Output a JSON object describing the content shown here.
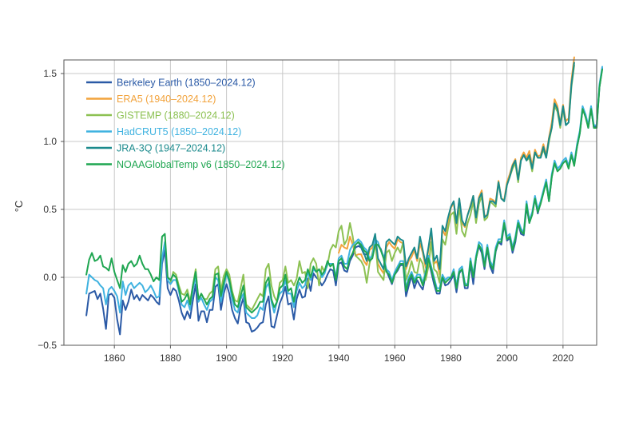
{
  "chart_data": {
    "type": "line",
    "title": "",
    "xlabel": "",
    "ylabel": "°C",
    "xlim": [
      1842,
      2032
    ],
    "ylim": [
      -0.5,
      1.6
    ],
    "xticks": [
      1860,
      1880,
      1900,
      1920,
      1940,
      1960,
      1980,
      2000,
      2020
    ],
    "yticks": [
      -0.5,
      0.0,
      0.5,
      1.0,
      1.5
    ],
    "ytick_labels": [
      "−0.5",
      "0.0",
      "0.5",
      "1.0",
      "1.5"
    ],
    "grid": true,
    "legend_position": "top-left",
    "series": [
      {
        "name": "Berkeley Earth (1850–2024.12)",
        "color": "#2b5aa6",
        "x_start": 1850,
        "values": [
          -0.28,
          -0.12,
          -0.11,
          -0.1,
          -0.16,
          -0.12,
          -0.23,
          -0.38,
          -0.13,
          -0.12,
          -0.15,
          -0.31,
          -0.42,
          -0.17,
          -0.24,
          -0.18,
          -0.09,
          -0.16,
          -0.13,
          -0.17,
          -0.13,
          -0.15,
          -0.17,
          -0.13,
          -0.15,
          -0.18,
          -0.2,
          0.1,
          0.2,
          -0.08,
          -0.13,
          -0.08,
          -0.1,
          -0.17,
          -0.26,
          -0.31,
          -0.25,
          -0.3,
          -0.17,
          -0.05,
          -0.32,
          -0.25,
          -0.25,
          -0.33,
          -0.24,
          -0.24,
          -0.07,
          -0.05,
          -0.24,
          -0.12,
          -0.05,
          -0.12,
          -0.24,
          -0.3,
          -0.34,
          -0.22,
          -0.15,
          -0.33,
          -0.34,
          -0.4,
          -0.39,
          -0.37,
          -0.34,
          -0.33,
          -0.2,
          -0.14,
          -0.36,
          -0.37,
          -0.28,
          -0.19,
          -0.14,
          -0.07,
          -0.2,
          -0.19,
          -0.31,
          -0.16,
          -0.09,
          -0.15,
          -0.14,
          -0.01,
          -0.1,
          0.03,
          0.0,
          -0.02,
          -0.06,
          -0.03,
          0.02,
          0.06,
          0.05,
          -0.06,
          0.1,
          0.11,
          0.05,
          0.04,
          0.12,
          0.16,
          0.22,
          0.23,
          0.22,
          0.17,
          0.17,
          0.12,
          0.15,
          0.24,
          0.24,
          0.21,
          0.15,
          0.05,
          0.0,
          -0.05,
          0.02,
          0.05,
          0.09,
          0.09,
          -0.14,
          -0.06,
          0.01,
          -0.08,
          -0.02,
          -0.06,
          -0.09,
          0.02,
          0.13,
          0.04,
          -0.05,
          -0.12,
          -0.12,
          0.0,
          -0.06,
          -0.05,
          -0.02,
          0.02,
          -0.11,
          0.03,
          0.06,
          -0.08,
          -0.08,
          0.1,
          -0.05,
          0.14,
          0.23,
          0.18,
          0.06,
          0.21,
          0.08,
          0.03,
          0.19,
          0.26,
          0.24,
          0.39,
          0.27,
          0.29,
          0.18,
          0.26,
          0.4,
          0.32,
          0.31,
          0.52,
          0.4,
          0.47,
          0.58,
          0.47,
          0.55,
          0.63,
          0.7,
          0.56,
          0.74,
          0.84,
          0.8,
          0.82,
          0.84,
          0.86,
          0.81,
          0.9,
          0.83,
          0.96,
          1.06,
          1.24,
          1.2,
          1.1,
          1.25,
          1.1,
          1.12,
          1.4,
          1.54
        ]
      },
      {
        "name": "ERA5 (1940–2024.12)",
        "color": "#f2a33c",
        "x_start": 1940,
        "values": [
          0.18,
          0.24,
          0.22,
          0.21,
          0.3,
          0.24,
          0.16,
          0.17,
          0.17,
          0.12,
          0.09,
          0.2,
          0.22,
          0.26,
          0.1,
          0.06,
          0.03,
          0.22,
          0.26,
          0.23,
          0.21,
          0.28,
          0.26,
          0.25,
          0.06,
          0.12,
          0.15,
          0.2,
          0.12,
          0.25,
          0.18,
          0.07,
          0.2,
          0.33,
          0.1,
          0.12,
          0.02,
          0.35,
          0.31,
          0.41,
          0.51,
          0.55,
          0.39,
          0.58,
          0.4,
          0.37,
          0.46,
          0.53,
          0.6,
          0.44,
          0.59,
          0.64,
          0.45,
          0.46,
          0.58,
          0.57,
          0.55,
          0.71,
          0.58,
          0.57,
          0.7,
          0.76,
          0.83,
          0.87,
          0.72,
          0.88,
          0.92,
          0.88,
          0.93,
          0.82,
          0.94,
          0.89,
          0.9,
          0.98,
          0.9,
          1.03,
          1.14,
          1.31,
          1.26,
          1.13,
          1.27,
          1.15,
          1.17,
          1.45,
          1.62
        ]
      },
      {
        "name": "GISTEMP (1880–2024.12)",
        "color": "#8cc152",
        "x_start": 1880,
        "values": [
          -0.04,
          0.04,
          0.02,
          -0.06,
          -0.12,
          -0.13,
          -0.09,
          -0.18,
          -0.06,
          0.06,
          -0.18,
          -0.12,
          -0.16,
          -0.16,
          -0.12,
          -0.1,
          0.06,
          0.08,
          -0.1,
          0.01,
          0.06,
          0.02,
          -0.1,
          -0.17,
          -0.18,
          -0.08,
          0.02,
          -0.2,
          -0.22,
          -0.24,
          -0.2,
          -0.16,
          -0.12,
          -0.14,
          0.06,
          0.1,
          -0.06,
          -0.14,
          -0.18,
          -0.04,
          -0.02,
          0.08,
          -0.04,
          -0.02,
          -0.06,
          -0.01,
          0.12,
          0.03,
          0.04,
          -0.08,
          0.1,
          0.14,
          0.1,
          -0.06,
          0.08,
          0.04,
          0.09,
          0.2,
          0.24,
          0.22,
          0.34,
          0.38,
          0.24,
          0.28,
          0.4,
          0.3,
          0.16,
          0.14,
          0.12,
          0.08,
          -0.04,
          0.1,
          0.18,
          0.28,
          0.04,
          0.01,
          -0.02,
          0.18,
          0.2,
          0.12,
          0.18,
          0.22,
          0.18,
          0.26,
          -0.02,
          0.04,
          0.12,
          0.04,
          0.03,
          0.14,
          0.1,
          -0.02,
          0.08,
          0.26,
          0.06,
          0.04,
          -0.04,
          0.28,
          0.24,
          0.36,
          0.46,
          0.48,
          0.32,
          0.52,
          0.34,
          0.3,
          0.4,
          0.46,
          0.56,
          0.4,
          0.54,
          0.6,
          0.42,
          0.44,
          0.56,
          0.54,
          0.52,
          0.7,
          0.58,
          0.56,
          0.68,
          0.74,
          0.8,
          0.84,
          0.7,
          0.86,
          0.9,
          0.86,
          0.88,
          0.78,
          0.92,
          0.88,
          0.88,
          0.94,
          0.88,
          1.0,
          1.1,
          1.26,
          1.22,
          1.1,
          1.24,
          1.12,
          1.14,
          1.4,
          1.56
        ]
      },
      {
        "name": "HadCRUT5 (1850–2024.12)",
        "color": "#3fb2e0",
        "x_start": 1850,
        "values": [
          -0.12,
          0.02,
          0.0,
          -0.02,
          -0.03,
          -0.06,
          -0.08,
          -0.2,
          -0.09,
          -0.07,
          -0.1,
          -0.14,
          -0.26,
          -0.03,
          -0.13,
          -0.06,
          -0.04,
          -0.08,
          -0.06,
          -0.04,
          -0.06,
          -0.11,
          -0.09,
          -0.06,
          -0.1,
          -0.15,
          -0.14,
          0.14,
          0.26,
          -0.02,
          -0.05,
          -0.02,
          -0.02,
          -0.1,
          -0.2,
          -0.22,
          -0.17,
          -0.24,
          -0.09,
          0.0,
          -0.18,
          -0.15,
          -0.2,
          -0.24,
          -0.18,
          -0.16,
          0.0,
          -0.02,
          -0.18,
          -0.08,
          0.03,
          -0.04,
          -0.16,
          -0.24,
          -0.26,
          -0.16,
          -0.12,
          -0.26,
          -0.28,
          -0.3,
          -0.3,
          -0.28,
          -0.22,
          -0.24,
          -0.08,
          -0.04,
          -0.18,
          -0.26,
          -0.18,
          -0.12,
          -0.1,
          -0.02,
          -0.12,
          -0.12,
          -0.22,
          -0.1,
          -0.04,
          -0.08,
          -0.06,
          0.04,
          -0.02,
          0.06,
          0.04,
          0.06,
          0.0,
          0.03,
          0.1,
          0.1,
          0.1,
          0.0,
          0.14,
          0.16,
          0.1,
          0.1,
          0.2,
          0.24,
          0.26,
          0.28,
          0.26,
          0.22,
          0.2,
          0.14,
          0.16,
          0.28,
          0.26,
          0.2,
          0.16,
          0.06,
          0.04,
          -0.02,
          0.04,
          0.08,
          0.12,
          0.12,
          -0.08,
          0.0,
          0.04,
          -0.02,
          0.02,
          0.02,
          -0.04,
          0.04,
          0.16,
          0.08,
          0.0,
          -0.08,
          -0.08,
          0.02,
          -0.02,
          0.0,
          0.0,
          0.06,
          -0.06,
          0.06,
          0.08,
          -0.04,
          -0.06,
          0.14,
          0.02,
          0.16,
          0.26,
          0.24,
          0.1,
          0.24,
          0.12,
          0.08,
          0.22,
          0.28,
          0.28,
          0.42,
          0.3,
          0.32,
          0.22,
          0.3,
          0.42,
          0.36,
          0.33,
          0.56,
          0.42,
          0.48,
          0.6,
          0.5,
          0.56,
          0.64,
          0.72,
          0.58,
          0.76,
          0.86,
          0.8,
          0.82,
          0.86,
          0.88,
          0.82,
          0.92,
          0.84,
          0.98,
          1.08,
          1.26,
          1.2,
          1.12,
          1.26,
          1.12,
          1.12,
          1.42,
          1.55
        ]
      },
      {
        "name": "JRA-3Q (1947–2024.12)",
        "color": "#1b8a8c",
        "x_start": 1947,
        "values": [
          0.26,
          0.22,
          0.18,
          0.12,
          0.22,
          0.24,
          0.32,
          0.14,
          0.1,
          0.06,
          0.26,
          0.28,
          0.26,
          0.24,
          0.3,
          0.28,
          0.27,
          0.08,
          0.14,
          0.18,
          0.22,
          0.14,
          0.3,
          0.2,
          0.1,
          0.22,
          0.36,
          0.12,
          0.16,
          0.06,
          0.38,
          0.34,
          0.44,
          0.52,
          0.56,
          0.4,
          0.58,
          0.42,
          0.38,
          0.46,
          0.52,
          0.6,
          0.44,
          0.58,
          0.62,
          0.44,
          0.46,
          0.56,
          0.56,
          0.54,
          0.7,
          0.58,
          0.56,
          0.68,
          0.74,
          0.82,
          0.86,
          0.72,
          0.86,
          0.9,
          0.86,
          0.9,
          0.8,
          0.92,
          0.88,
          0.88,
          0.96,
          0.88,
          1.02,
          1.1,
          1.28,
          1.24,
          1.12,
          1.26,
          1.12,
          1.14,
          1.42,
          1.58
        ]
      },
      {
        "name": "NOAAGlobalTemp v6 (1850–2024.12)",
        "color": "#1fa651",
        "x_start": 1850,
        "values": [
          0.02,
          0.13,
          0.18,
          0.12,
          0.13,
          0.16,
          0.08,
          0.07,
          0.05,
          0.14,
          0.04,
          -0.02,
          -0.08,
          0.09,
          0.04,
          0.1,
          0.12,
          0.08,
          0.1,
          0.16,
          0.1,
          0.06,
          0.06,
          0.02,
          -0.03,
          0.0,
          -0.02,
          0.3,
          0.32,
          0.0,
          -0.02,
          0.02,
          0.0,
          -0.08,
          -0.18,
          -0.16,
          -0.12,
          -0.2,
          -0.06,
          0.04,
          -0.16,
          -0.12,
          -0.16,
          -0.2,
          -0.16,
          -0.14,
          0.02,
          0.03,
          -0.14,
          -0.04,
          0.04,
          -0.02,
          -0.12,
          -0.2,
          -0.22,
          -0.14,
          -0.06,
          -0.22,
          -0.24,
          -0.26,
          -0.24,
          -0.22,
          -0.18,
          -0.18,
          -0.04,
          0.0,
          -0.16,
          -0.22,
          -0.18,
          -0.08,
          -0.06,
          0.02,
          -0.1,
          -0.08,
          -0.18,
          -0.06,
          0.0,
          -0.04,
          -0.02,
          0.06,
          0.0,
          0.08,
          0.04,
          0.06,
          0.02,
          0.05,
          0.12,
          0.08,
          0.1,
          -0.02,
          0.12,
          0.14,
          0.08,
          0.06,
          0.14,
          0.18,
          0.24,
          0.26,
          0.24,
          0.2,
          0.18,
          0.12,
          0.14,
          0.24,
          0.24,
          0.2,
          0.14,
          0.04,
          0.02,
          -0.04,
          0.02,
          0.06,
          0.1,
          0.1,
          -0.1,
          -0.02,
          0.02,
          -0.04,
          0.0,
          0.0,
          -0.06,
          0.02,
          0.14,
          0.06,
          -0.02,
          -0.1,
          -0.1,
          0.0,
          -0.04,
          -0.02,
          0.0,
          0.04,
          -0.08,
          0.04,
          0.06,
          -0.06,
          -0.06,
          0.12,
          0.0,
          0.14,
          0.24,
          0.2,
          0.08,
          0.22,
          0.1,
          0.06,
          0.2,
          0.26,
          0.26,
          0.4,
          0.28,
          0.3,
          0.2,
          0.28,
          0.4,
          0.34,
          0.32,
          0.54,
          0.4,
          0.46,
          0.58,
          0.48,
          0.54,
          0.62,
          0.7,
          0.56,
          0.74,
          0.84,
          0.78,
          0.8,
          0.84,
          0.86,
          0.8,
          0.9,
          0.82,
          0.96,
          1.06,
          1.24,
          1.18,
          1.1,
          1.24,
          1.1,
          1.1,
          1.4,
          1.53
        ]
      }
    ]
  }
}
